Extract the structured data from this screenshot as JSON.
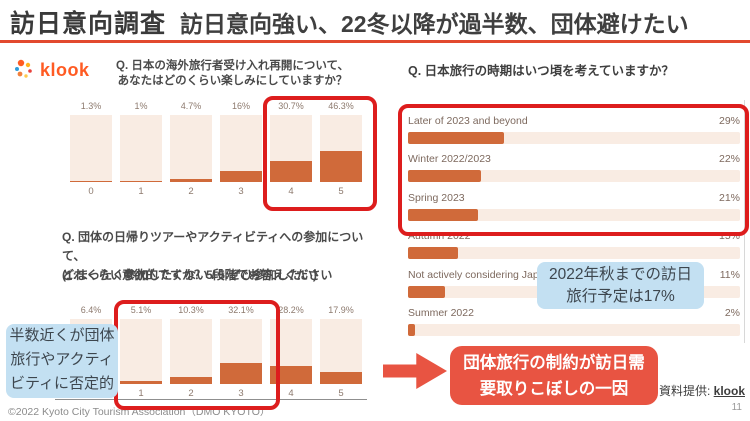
{
  "header": {
    "title": "訪日意向調査",
    "subtitle": "訪日意向強い、22冬以降が過半数、団体避けたい"
  },
  "brand": {
    "logo_text": "klook"
  },
  "questions": {
    "q1": "Q. 日本の海外旅行者受け入れ再開について、\nあなたはどのくらい楽しみにしていますか？",
    "q2": "Q. 団体の日帰りツアーやアクティビティへの参加について、\nどれくらい意欲的ですか？5段階でお答えください",
    "q2_scale_note": "(1:まったく参加したくない / 5:ぜひ参加したい)",
    "q3": "Q. 日本旅行の時期はいつ頃を考えていますか？"
  },
  "chart_data": [
    {
      "id": "expectation",
      "type": "bar",
      "title": "Q. 日本の海外旅行者受け入れ再開について、あなたはどのくらい楽しみにしていますか？",
      "categories": [
        "0",
        "1",
        "2",
        "3",
        "4",
        "5"
      ],
      "values": [
        1.3,
        1,
        4.7,
        16,
        30.7,
        46.3
      ],
      "value_labels": [
        "1.3%",
        "1%",
        "4.7%",
        "16%",
        "30.7%",
        "46.3%"
      ],
      "ylim": [
        0,
        100
      ],
      "highlight": "categories 4 and 5 circled in red"
    },
    {
      "id": "group-tour",
      "type": "bar",
      "title": "Q. 団体の日帰りツアーやアクティビティへの参加について、どれくらい意欲的ですか？5段階でお答えください (1:まったく参加したくない / 5:ぜひ参加したい)",
      "categories": [
        "",
        "1",
        "2",
        "3",
        "4",
        "5"
      ],
      "values": [
        6.4,
        5.1,
        10.3,
        32.1,
        28.2,
        17.9
      ],
      "value_labels": [
        "6.4%",
        "5.1%",
        "10.3%",
        "32.1%",
        "28.2%",
        "17.9%"
      ],
      "ylim": [
        0,
        100
      ],
      "highlight": "categories 1, 2 and 3 circled in red"
    },
    {
      "id": "timing",
      "type": "hbar",
      "title": "Q. 日本旅行の時期はいつ頃を考えていますか？",
      "categories": [
        "Later of 2023 and beyond",
        "Winter 2022/2023",
        "Spring 2023",
        "Autumn 2022",
        "Not actively considering Japan at the moment",
        "Summer 2022"
      ],
      "values": [
        29,
        22,
        21,
        15,
        11,
        2
      ],
      "value_labels": [
        "29%",
        "22%",
        "21%",
        "15%",
        "11%",
        "2%"
      ],
      "xlim": [
        0,
        100
      ],
      "highlight": "top three rows circled in red"
    }
  ],
  "callouts": {
    "left": "半数近くが団体\n旅行やアクティ\nビティに否定的",
    "right": "2022年秋までの訪日\n旅行予定は17%",
    "conclusion": "団体旅行の制約が訪日需\n要取りこぼしの一因"
  },
  "source": {
    "label": "資料提供:",
    "link": "klook"
  },
  "footer": {
    "copyright": "©2022 Kyoto City Tourism Association（DMO KYOTO）",
    "page": "11"
  },
  "colors": {
    "accent_rule": "#e2492f",
    "highlight_red": "#dd1d1d",
    "bar_fill": "#d06a3a",
    "bar_track": "#f9ece3",
    "callout_blue": "#c3e0f2",
    "conclusion_red": "#e85442",
    "klook_orange": "#ff5b23",
    "title_text": "#3a3a3a",
    "muted_label": "#8d7a6e"
  }
}
